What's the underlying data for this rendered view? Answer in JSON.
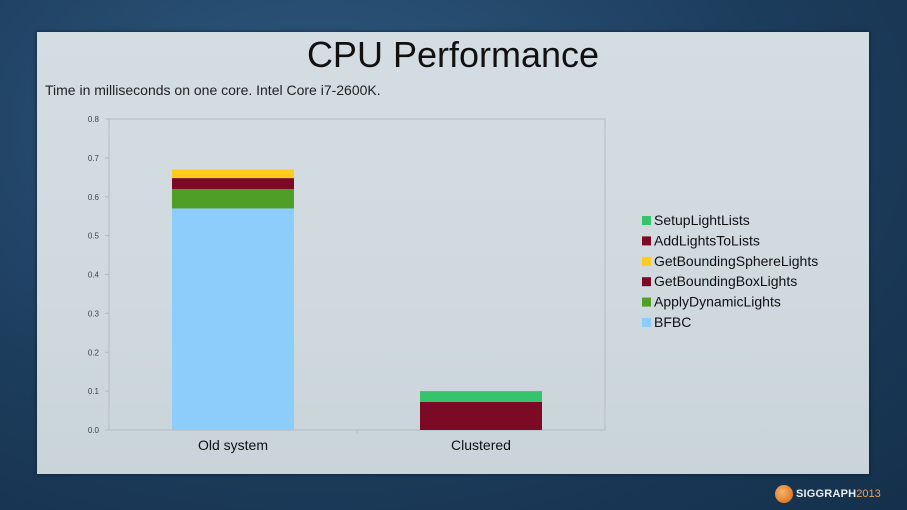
{
  "slide": {
    "title": "CPU Performance",
    "subtitle": "Time in milliseconds on one core. Intel Core i7-2600K."
  },
  "branding": {
    "name": "SIGGRAPH",
    "year": "2013"
  },
  "chart_data": {
    "type": "bar",
    "stacked": true,
    "categories": [
      "Old system",
      "Clustered"
    ],
    "ylim": [
      0,
      0.8
    ],
    "yticks": [
      "0.0",
      "0.1",
      "0.2",
      "0.3",
      "0.4",
      "0.5",
      "0.6",
      "0.7",
      "0.8"
    ],
    "grid": false,
    "legend_position": "right",
    "series": [
      {
        "name": "BFBC",
        "color": "#8ccdfb",
        "values": [
          0.57,
          0
        ]
      },
      {
        "name": "ApplyDynamicLights",
        "color": "#4e9e27",
        "values": [
          0.05,
          0
        ]
      },
      {
        "name": "GetBoundingBoxLights",
        "color": "#7d0a24",
        "values": [
          0.028,
          0
        ]
      },
      {
        "name": "GetBoundingSphereLights",
        "color": "#ffcc1e",
        "values": [
          0.022,
          0
        ]
      },
      {
        "name": "AddLightsToLists",
        "color": "#7d0a24",
        "values": [
          0,
          0.072
        ]
      },
      {
        "name": "SetupLightLists",
        "color": "#35c46c",
        "values": [
          0,
          0.028
        ]
      }
    ]
  }
}
